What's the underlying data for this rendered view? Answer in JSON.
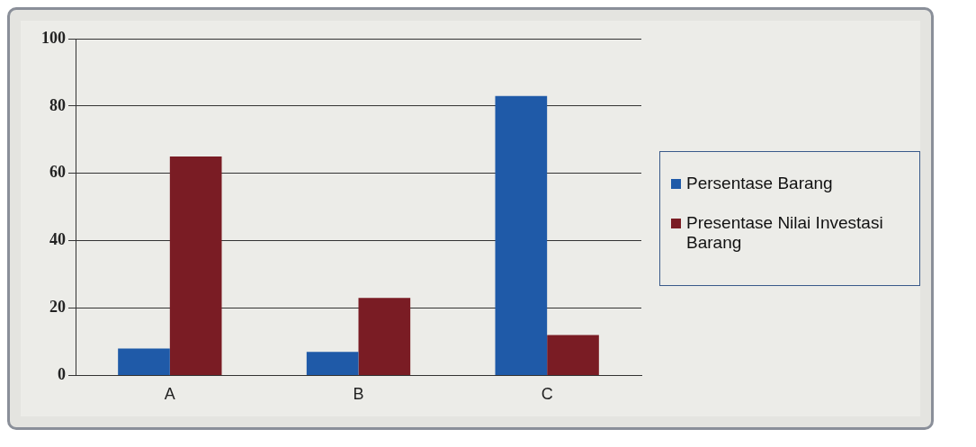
{
  "chart_data": {
    "type": "bar",
    "categories": [
      "A",
      "B",
      "C"
    ],
    "series": [
      {
        "name": "Persentase Barang",
        "color": "#1f5aa8",
        "values": [
          8,
          7,
          83
        ]
      },
      {
        "name": "Presentase Nilai Investasi Barang",
        "color": "#7a1c24",
        "values": [
          65,
          23,
          12
        ]
      }
    ],
    "ylim": [
      0,
      100
    ],
    "yticks": [
      0,
      20,
      40,
      60,
      80,
      100
    ],
    "grid": "y",
    "legend": "right"
  }
}
